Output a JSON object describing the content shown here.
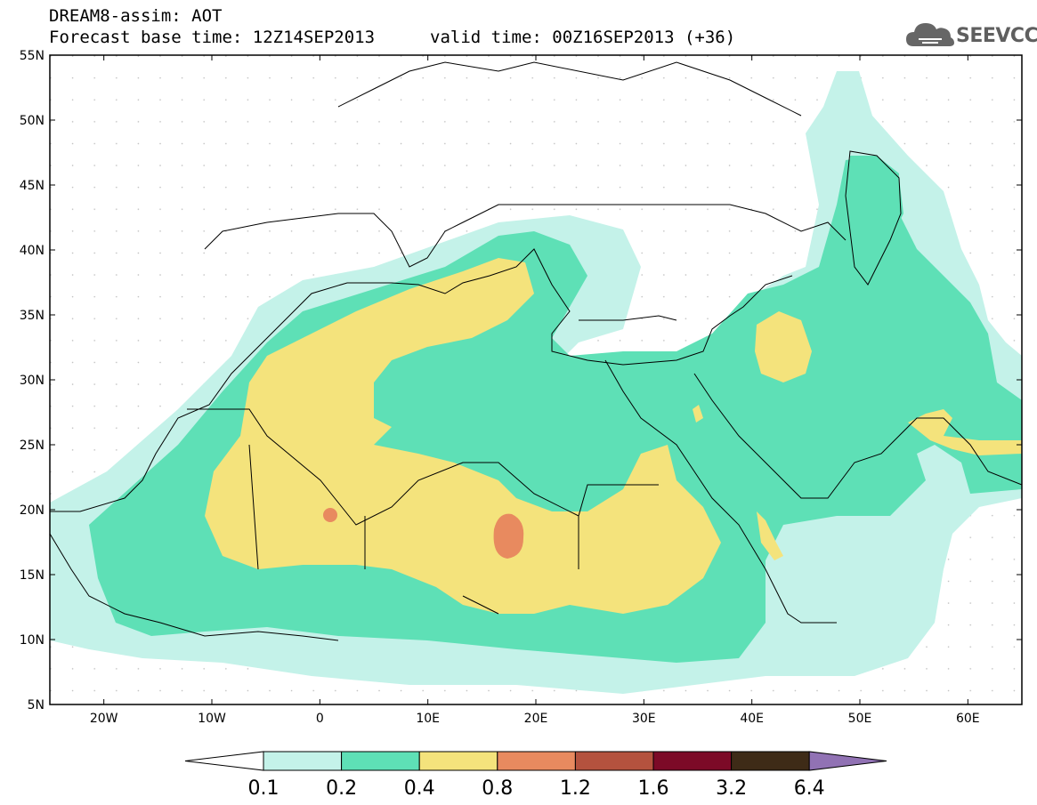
{
  "header": {
    "title": "DREAM8-assim: AOT",
    "base_time": "Forecast base time: 12Z14SEP2013",
    "valid_time": "valid time: 00Z16SEP2013 (+36)"
  },
  "logo": {
    "text": "SEEVCCC",
    "icon": "cloud-icon"
  },
  "map": {
    "lat_labels": [
      "55N",
      "50N",
      "45N",
      "40N",
      "35N",
      "30N",
      "25N",
      "20N",
      "15N",
      "10N",
      "5N"
    ],
    "lon_labels": [
      "20W",
      "10W",
      "0",
      "10E",
      "20E",
      "30E",
      "40E",
      "50E",
      "60E"
    ],
    "lon_range": [
      -25,
      65
    ],
    "lat_range": [
      5,
      55
    ]
  },
  "colorbar": {
    "labels": [
      "0.1",
      "0.2",
      "0.4",
      "0.8",
      "1.2",
      "1.6",
      "3.2",
      "6.4"
    ],
    "colors": [
      "#c4f2e9",
      "#5ee0b6",
      "#f4e37c",
      "#e88a5f",
      "#b4523e",
      "#7c0a27",
      "#3e2b17",
      "#9172b4"
    ]
  }
}
